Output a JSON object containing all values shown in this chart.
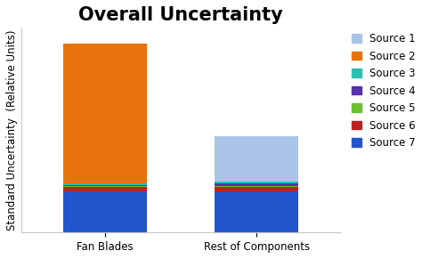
{
  "title": "Overall Uncertainty",
  "ylabel": "Standard Uncertainty  (Relative Units)",
  "categories": [
    "Fan Blades",
    "Rest of Components"
  ],
  "sources": [
    "Source 1",
    "Source 2",
    "Source 3",
    "Source 4",
    "Source 5",
    "Source 6",
    "Source 7"
  ],
  "colors": [
    "#aac4e8",
    "#e8720c",
    "#2bbfb0",
    "#5533aa",
    "#6abf30",
    "#bb2222",
    "#2255cc"
  ],
  "values": [
    [
      0.0,
      0.58,
      0.008,
      0.005,
      0.004,
      0.018,
      0.17
    ],
    [
      0.19,
      0.0,
      0.008,
      0.012,
      0.004,
      0.018,
      0.17
    ]
  ],
  "ylim": [
    0,
    0.85
  ],
  "background_color": "#ffffff",
  "grid_color": "#c8c8c8",
  "title_fontsize": 15,
  "label_fontsize": 8.5,
  "legend_fontsize": 8.5,
  "bar_width": 0.55
}
